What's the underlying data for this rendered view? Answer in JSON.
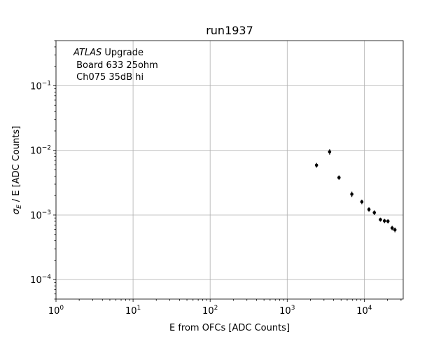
{
  "chart_data": {
    "type": "scatter",
    "title": "run1937",
    "xlabel": "E from OFCs [ADC Counts]",
    "ylabel": "σ_E / E [ADC Counts]",
    "xscale": "log",
    "yscale": "log",
    "xlim": [
      1,
      32000
    ],
    "ylim": [
      5e-05,
      0.5
    ],
    "grid": true,
    "annotation": {
      "italic": "ATLAS",
      "first_rest": " Upgrade",
      "line2": " Board 633 25ohm",
      "line3": " Ch075 35dB hi"
    },
    "x_ticks": [
      {
        "value": 1,
        "base": "10",
        "exp": "0"
      },
      {
        "value": 10,
        "base": "10",
        "exp": "1"
      },
      {
        "value": 100,
        "base": "10",
        "exp": "2"
      },
      {
        "value": 1000,
        "base": "10",
        "exp": "3"
      },
      {
        "value": 10000,
        "base": "10",
        "exp": "4"
      }
    ],
    "y_ticks": [
      {
        "value": 0.0001,
        "base": "10",
        "exp": "−4"
      },
      {
        "value": 0.001,
        "base": "10",
        "exp": "−3"
      },
      {
        "value": 0.01,
        "base": "10",
        "exp": "−2"
      },
      {
        "value": 0.1,
        "base": "10",
        "exp": "−1"
      }
    ],
    "points": [
      {
        "x": 2400,
        "y": 0.0059,
        "err": 0.0005
      },
      {
        "x": 3550,
        "y": 0.0095,
        "err": 0.0009
      },
      {
        "x": 4700,
        "y": 0.0038,
        "err": 0.0003
      },
      {
        "x": 6900,
        "y": 0.0021,
        "err": 0.0002
      },
      {
        "x": 9300,
        "y": 0.0016,
        "err": 0.00013
      },
      {
        "x": 11500,
        "y": 0.00122,
        "err": 0.0001
      },
      {
        "x": 13500,
        "y": 0.00109,
        "err": 9e-05
      },
      {
        "x": 16200,
        "y": 0.00085,
        "err": 6e-05
      },
      {
        "x": 18300,
        "y": 0.00081,
        "err": 6e-05
      },
      {
        "x": 20300,
        "y": 0.0008,
        "err": 6e-05
      },
      {
        "x": 23000,
        "y": 0.00063,
        "err": 5e-05
      },
      {
        "x": 25000,
        "y": 0.00059,
        "err": 5e-05
      }
    ]
  }
}
